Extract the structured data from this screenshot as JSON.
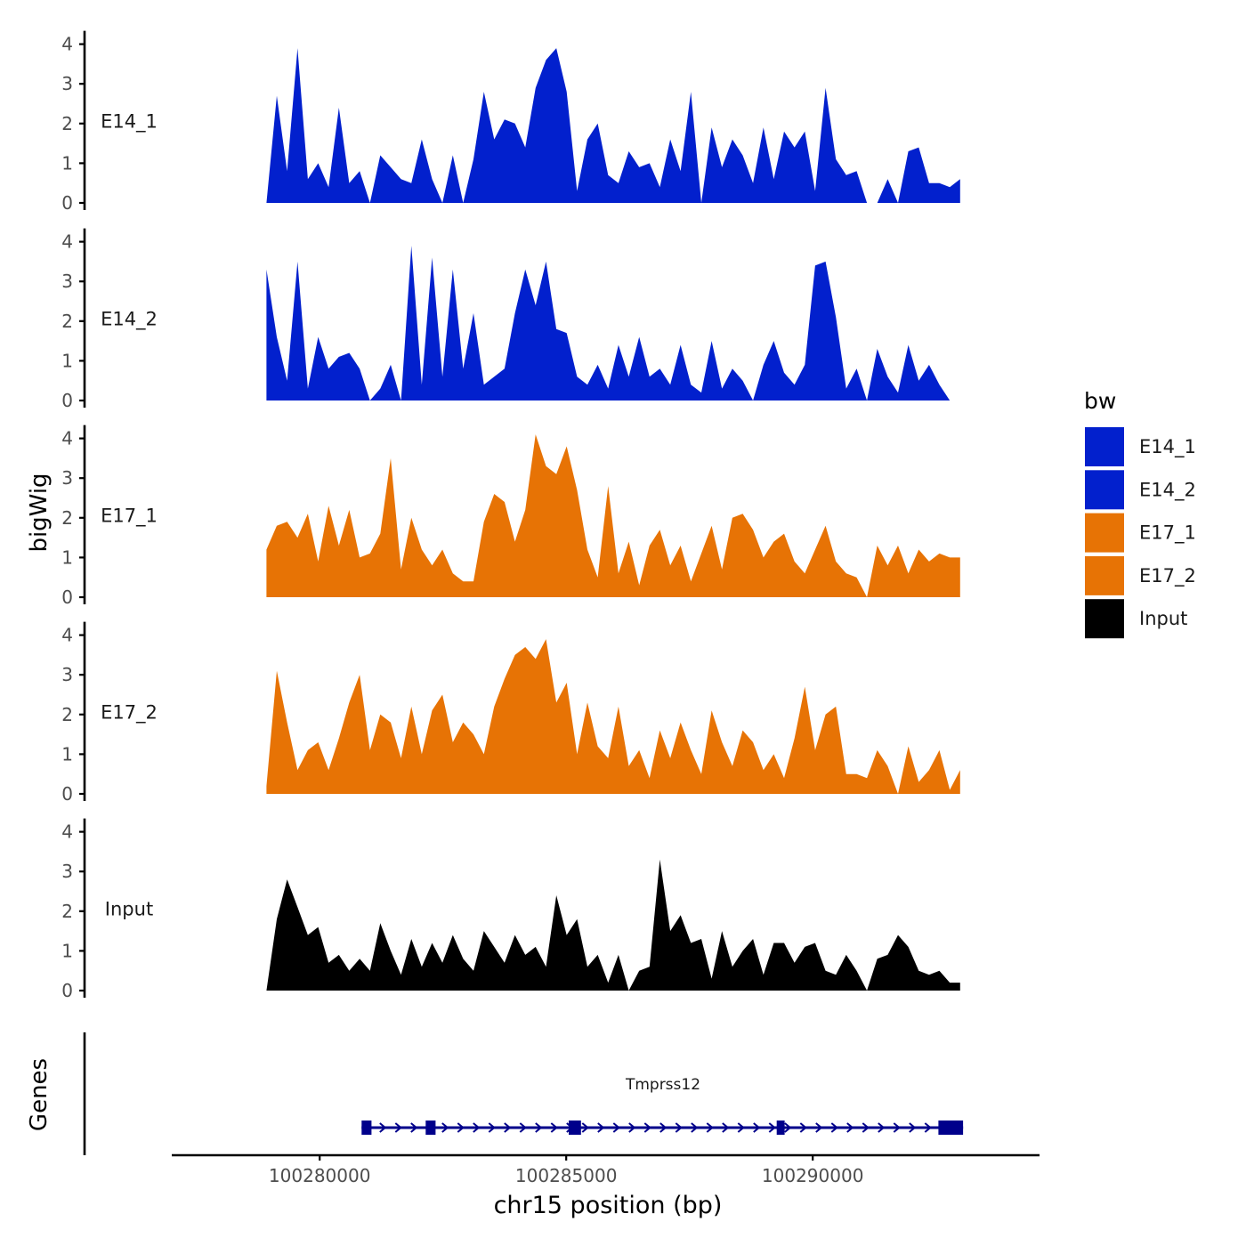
{
  "colors": {
    "E14": "#0220CD",
    "E17": "#E77305",
    "Input": "#000000",
    "gene": "#00008B",
    "axis": "#000000",
    "tick_text": "#4D4D4D",
    "label_text": "#1A1A1A"
  },
  "chart_data": {
    "type": "area",
    "title": "",
    "ylabel": "bigWig",
    "xlabel": "chr15 position (bp)",
    "ylim": [
      0,
      4.2
    ],
    "y_ticks": [
      "0",
      "1",
      "2",
      "3",
      "4"
    ],
    "xlim": [
      100277000,
      100294600
    ],
    "x_ticks": [
      {
        "value": 100280000,
        "label": "100280000"
      },
      {
        "value": 100285000,
        "label": "100285000"
      },
      {
        "value": 100290000,
        "label": "100290000"
      }
    ],
    "legend": {
      "title": "bw",
      "position": "right",
      "entries": [
        {
          "label": "E14_1",
          "color": "#0220CD"
        },
        {
          "label": "E14_2",
          "color": "#0220CD"
        },
        {
          "label": "E17_1",
          "color": "#E77305"
        },
        {
          "label": "E17_2",
          "color": "#E77305"
        },
        {
          "label": "Input",
          "color": "#000000"
        }
      ]
    },
    "x": [
      100278920,
      100279130,
      100279340,
      100279550,
      100279760,
      100279970,
      100280180,
      100280390,
      100280600,
      100280810,
      100281020,
      100281230,
      100281440,
      100281650,
      100281860,
      100282070,
      100282280,
      100282490,
      100282700,
      100282910,
      100283120,
      100283330,
      100283540,
      100283750,
      100283960,
      100284170,
      100284380,
      100284590,
      100284800,
      100285010,
      100285220,
      100285430,
      100285640,
      100285850,
      100286060,
      100286270,
      100286480,
      100286690,
      100286900,
      100287110,
      100287320,
      100287530,
      100287740,
      100287950,
      100288160,
      100288370,
      100288580,
      100288790,
      100289000,
      100289210,
      100289420,
      100289630,
      100289840,
      100290050,
      100290260,
      100290470,
      100290680,
      100290890,
      100291100,
      100291310,
      100291520,
      100291730,
      100291940,
      100292150,
      100292360,
      100292570,
      100292780,
      100292990
    ],
    "series": [
      {
        "name": "E14_1",
        "group": "E14",
        "values": [
          0.0,
          2.7,
          0.8,
          3.9,
          0.6,
          1.0,
          0.4,
          2.4,
          0.5,
          0.8,
          0.0,
          1.2,
          0.9,
          0.6,
          0.5,
          1.6,
          0.6,
          0.0,
          1.2,
          0.0,
          1.1,
          2.8,
          1.6,
          2.1,
          2.0,
          1.4,
          2.9,
          3.6,
          3.9,
          2.8,
          0.3,
          1.6,
          2.0,
          0.7,
          0.5,
          1.3,
          0.9,
          1.0,
          0.4,
          1.6,
          0.8,
          2.8,
          0.0,
          1.9,
          0.9,
          1.6,
          1.2,
          0.5,
          1.9,
          0.6,
          1.8,
          1.4,
          1.8,
          0.3,
          2.9,
          1.1,
          0.7,
          0.8,
          0.0,
          0.0,
          0.6,
          0.0,
          1.3,
          1.4,
          0.5,
          0.5,
          0.4,
          0.6
        ]
      },
      {
        "name": "E14_2",
        "group": "E14",
        "values": [
          3.3,
          1.6,
          0.5,
          3.5,
          0.3,
          1.6,
          0.8,
          1.1,
          1.2,
          0.8,
          0.0,
          0.3,
          0.9,
          0.0,
          3.9,
          0.4,
          3.6,
          0.6,
          3.3,
          0.8,
          2.2,
          0.4,
          0.6,
          0.8,
          2.2,
          3.3,
          2.4,
          3.5,
          1.8,
          1.7,
          0.6,
          0.4,
          0.9,
          0.3,
          1.4,
          0.6,
          1.6,
          0.6,
          0.8,
          0.4,
          1.4,
          0.4,
          0.2,
          1.5,
          0.3,
          0.8,
          0.5,
          0.0,
          0.9,
          1.5,
          0.7,
          0.4,
          0.9,
          3.4,
          3.5,
          2.1,
          0.3,
          0.8,
          0.0,
          1.3,
          0.6,
          0.2,
          1.4,
          0.5,
          0.9,
          0.4,
          0.0,
          0.0
        ]
      },
      {
        "name": "E17_1",
        "group": "E17",
        "values": [
          1.2,
          1.8,
          1.9,
          1.5,
          2.1,
          0.9,
          2.3,
          1.3,
          2.2,
          1.0,
          1.1,
          1.6,
          3.5,
          0.7,
          2.0,
          1.2,
          0.8,
          1.2,
          0.6,
          0.4,
          0.4,
          1.9,
          2.6,
          2.4,
          1.4,
          2.2,
          4.1,
          3.3,
          3.1,
          3.8,
          2.7,
          1.2,
          0.5,
          2.8,
          0.6,
          1.4,
          0.3,
          1.3,
          1.7,
          0.8,
          1.3,
          0.4,
          1.1,
          1.8,
          0.7,
          2.0,
          2.1,
          1.7,
          1.0,
          1.4,
          1.6,
          0.9,
          0.6,
          1.2,
          1.8,
          0.9,
          0.6,
          0.5,
          0.0,
          1.3,
          0.8,
          1.3,
          0.6,
          1.2,
          0.9,
          1.1,
          1.0,
          1.0
        ]
      },
      {
        "name": "E17_2",
        "group": "E17",
        "values": [
          0.2,
          3.1,
          1.8,
          0.6,
          1.1,
          1.3,
          0.6,
          1.4,
          2.3,
          3.0,
          1.1,
          2.0,
          1.8,
          0.9,
          2.2,
          1.0,
          2.1,
          2.5,
          1.3,
          1.8,
          1.5,
          1.0,
          2.2,
          2.9,
          3.5,
          3.7,
          3.4,
          3.9,
          2.3,
          2.8,
          1.0,
          2.3,
          1.2,
          0.9,
          2.2,
          0.7,
          1.1,
          0.4,
          1.6,
          0.9,
          1.8,
          1.1,
          0.5,
          2.1,
          1.3,
          0.7,
          1.6,
          1.3,
          0.6,
          1.0,
          0.4,
          1.4,
          2.7,
          1.1,
          2.0,
          2.2,
          0.5,
          0.5,
          0.4,
          1.1,
          0.7,
          0.0,
          1.2,
          0.3,
          0.6,
          1.1,
          0.1,
          0.6
        ]
      },
      {
        "name": "Input",
        "group": "Input",
        "values": [
          0.0,
          1.8,
          2.8,
          2.1,
          1.4,
          1.6,
          0.7,
          0.9,
          0.5,
          0.8,
          0.5,
          1.7,
          1.0,
          0.4,
          1.3,
          0.6,
          1.2,
          0.7,
          1.4,
          0.8,
          0.5,
          1.5,
          1.1,
          0.7,
          1.4,
          0.9,
          1.1,
          0.6,
          2.4,
          1.4,
          1.8,
          0.6,
          0.9,
          0.2,
          0.9,
          0.0,
          0.5,
          0.6,
          3.3,
          1.5,
          1.9,
          1.2,
          1.3,
          0.3,
          1.5,
          0.6,
          1.0,
          1.3,
          0.4,
          1.2,
          1.2,
          0.7,
          1.1,
          1.2,
          0.5,
          0.4,
          0.9,
          0.5,
          0.0,
          0.8,
          0.9,
          1.4,
          1.1,
          0.5,
          0.4,
          0.5,
          0.2,
          0.2
        ]
      }
    ],
    "genes_track": {
      "label": "Genes",
      "gene_name": "Tmprss12",
      "strand": "+",
      "start": 100280850,
      "end": 100293050,
      "exons": [
        [
          100280850,
          100281050
        ],
        [
          100282150,
          100282350
        ],
        [
          100285050,
          100285300
        ],
        [
          100289270,
          100289430
        ],
        [
          100292550,
          100293050
        ]
      ]
    }
  }
}
